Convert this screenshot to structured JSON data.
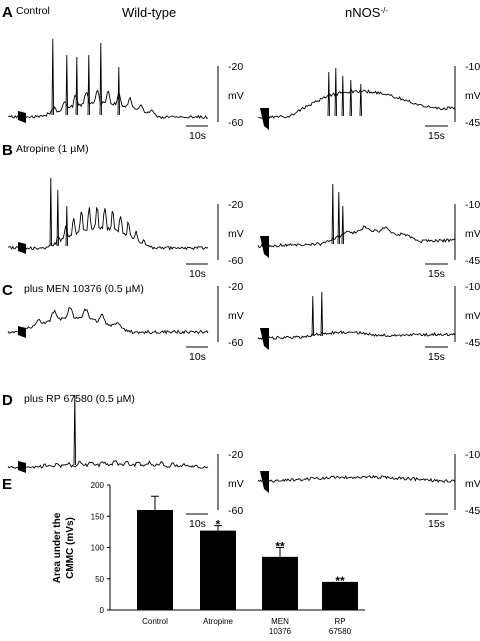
{
  "figure": {
    "genotype_labels": [
      "Wild-type",
      "nNOS"
    ],
    "genotype_superscript": "-/-",
    "panels": [
      {
        "letter": "A",
        "condition": "Control",
        "wt_top": "-20",
        "wt_unit": "mV",
        "wt_bottom": "-60",
        "wt_time": "10s",
        "ko_top": "-10",
        "ko_unit": "mV",
        "ko_bottom": "-45",
        "ko_time": "15s"
      },
      {
        "letter": "B",
        "condition": "Atropine (1 µM)",
        "wt_top": "-20",
        "wt_unit": "mV",
        "wt_bottom": "-60",
        "wt_time": "10s",
        "ko_top": "-10",
        "ko_unit": "mV",
        "ko_bottom": "-45",
        "ko_time": "15s"
      },
      {
        "letter": "C",
        "condition": "plus MEN 10376 (0.5 µM)",
        "wt_top": "-20",
        "wt_unit": "mV",
        "wt_bottom": "-60",
        "wt_time": "10s",
        "ko_top": "-10",
        "ko_unit": "mV",
        "ko_bottom": "-45",
        "ko_time": "15s"
      },
      {
        "letter": "D",
        "condition": "plus RP 67580 (0.5 µM)",
        "wt_top": "-20",
        "wt_unit": "mV",
        "wt_bottom": "-60",
        "wt_time": "10s",
        "ko_top": "-10",
        "ko_unit": "mV",
        "ko_bottom": "-45",
        "ko_time": "15s"
      }
    ],
    "panel_e_letter": "E"
  },
  "chart_data": {
    "type": "bar",
    "ylabel": "Area under the CMMC (mVs)",
    "ylim": [
      0,
      200
    ],
    "yticks": [
      "0",
      "50",
      "100",
      "150",
      "200"
    ],
    "categories": [
      [
        "Control"
      ],
      [
        "Atropine"
      ],
      [
        "MEN",
        "10376"
      ],
      [
        "RP",
        "67580"
      ]
    ],
    "values": [
      160,
      127,
      85,
      45
    ],
    "errors": [
      22,
      8,
      15,
      0
    ],
    "significance": [
      "",
      "*",
      "**",
      "**"
    ],
    "bar_color": "#000000"
  }
}
